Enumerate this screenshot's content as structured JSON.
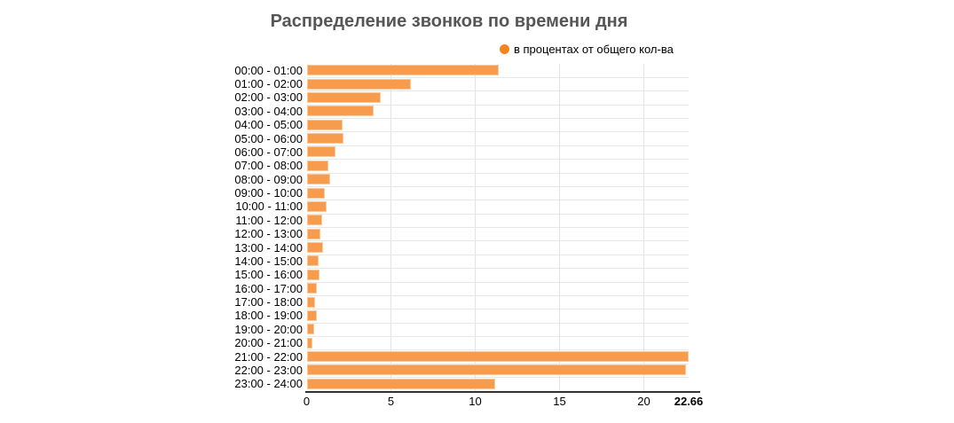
{
  "title": "Распределение звонков по времени дня",
  "legend": {
    "label": "в процентах от общего кол-ва",
    "bullet_color": "#f5831f"
  },
  "colors": {
    "bar_fill": "#f79b4c",
    "legend_bullet": "#f5831f",
    "title_text": "#565656",
    "axis_text": "#000000",
    "grid_line": "#e8e8e8",
    "axis_line": "#333333",
    "background": "#ffffff"
  },
  "chart_data": {
    "type": "bar",
    "orientation": "horizontal",
    "title": "Распределение звонков по времени дня",
    "legend_entries": [
      "в процентах от общего кол-ва"
    ],
    "legend_position": "top",
    "grid": true,
    "xlabel": "",
    "ylabel": "",
    "xlim": [
      0,
      22.66
    ],
    "x_ticks": [
      0,
      5,
      10,
      15,
      20
    ],
    "x_max_label": "22.66",
    "categories": [
      "00:00 - 01:00",
      "01:00 - 02:00",
      "02:00 - 03:00",
      "03:00 - 04:00",
      "04:00 - 05:00",
      "05:00 - 06:00",
      "06:00 - 07:00",
      "07:00 - 08:00",
      "08:00 - 09:00",
      "09:00 - 10:00",
      "10:00 - 11:00",
      "11:00 - 12:00",
      "12:00 - 13:00",
      "13:00 - 14:00",
      "14:00 - 15:00",
      "15:00 - 16:00",
      "16:00 - 17:00",
      "17:00 - 18:00",
      "18:00 - 19:00",
      "19:00 - 20:00",
      "20:00 - 21:00",
      "21:00 - 22:00",
      "22:00 - 23:00",
      "23:00 - 24:00"
    ],
    "values": [
      11.4,
      6.2,
      4.4,
      4.0,
      2.15,
      2.2,
      1.7,
      1.3,
      1.4,
      1.1,
      1.2,
      0.9,
      0.8,
      0.95,
      0.7,
      0.75,
      0.6,
      0.5,
      0.6,
      0.45,
      0.35,
      22.66,
      22.5,
      11.2
    ],
    "value_unit": "percent"
  }
}
